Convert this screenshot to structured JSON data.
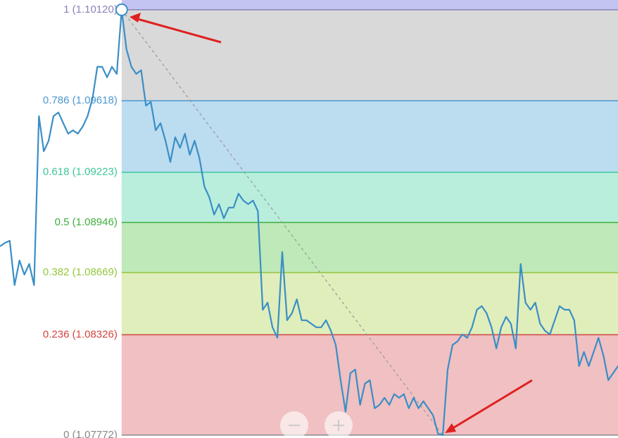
{
  "chart_data": {
    "type": "line",
    "series": [
      {
        "color": "#3a8ec6",
        "values": [
          1.08814,
          1.08833,
          1.08845,
          1.086,
          1.08736,
          1.08658,
          1.08717,
          1.086,
          1.09533,
          1.09339,
          1.09397,
          1.09533,
          1.09553,
          1.09494,
          1.09436,
          1.09455,
          1.09436,
          1.09475,
          1.09533,
          1.0963,
          1.09805,
          1.09805,
          1.09747,
          1.09805,
          1.09766,
          1.1012,
          1.09902,
          1.09805,
          1.09766,
          1.09786,
          1.09591,
          1.09611,
          1.09455,
          1.09494,
          1.09397,
          1.0928,
          1.09416,
          1.09358,
          1.09436,
          1.09319,
          1.09397,
          1.093,
          1.09144,
          1.09086,
          1.08989,
          1.09047,
          1.08969,
          1.09028,
          1.09028,
          1.09105,
          1.09067,
          1.09047,
          1.09067,
          1.09008,
          1.08464,
          1.08503,
          1.08367,
          1.08309,
          1.08783,
          1.08406,
          1.08445,
          1.08522,
          1.08406,
          1.08406,
          1.08386,
          1.08367,
          1.08367,
          1.08406,
          1.08348,
          1.0827,
          1.08075,
          1.07901,
          1.08114,
          1.08134,
          1.07939,
          1.08056,
          1.08075,
          1.0792,
          1.07939,
          1.07978,
          1.07939,
          1.07998,
          1.07978,
          1.07998,
          1.0792,
          1.07978,
          1.0792,
          1.07959,
          1.0792,
          1.07881,
          1.0778,
          1.07772,
          1.08134,
          1.0827,
          1.08289,
          1.08328,
          1.08309,
          1.08367,
          1.08464,
          1.08484,
          1.08445,
          1.08367,
          1.0825,
          1.08367,
          1.08425,
          1.08386,
          1.0825,
          1.08717,
          1.08503,
          1.08464,
          1.08503,
          1.08386,
          1.08348,
          1.08328,
          1.08406,
          1.08484,
          1.08464,
          1.08464,
          1.08406,
          1.08153,
          1.08231,
          1.08153,
          1.08231,
          1.08309,
          1.08211,
          1.08075,
          1.08114,
          1.08153
        ]
      }
    ],
    "ylim": [
      1.07756,
      1.10174
    ],
    "levels": [
      {
        "value": 1.1012,
        "label": "1 (1.10120)",
        "color": "#8a84b8",
        "fill": "#d9d9d9"
      },
      {
        "value": 1.09618,
        "label": "0.786 (1.09618)",
        "color": "#4a98cf",
        "fill": "#bcdcf0"
      },
      {
        "value": 1.09223,
        "label": "0.618 (1.09223)",
        "color": "#3cc59a",
        "fill": "#b9eedc"
      },
      {
        "value": 1.08946,
        "label": "0.5 (1.08946)",
        "color": "#3faf3f",
        "fill": "#bfe9b8"
      },
      {
        "value": 1.08669,
        "label": "0.382 (1.08669)",
        "color": "#95c63c",
        "fill": "#dfeebb"
      },
      {
        "value": 1.08326,
        "label": "0.236 (1.08326)",
        "color": "#d2453f",
        "fill": "#f0c0c2"
      },
      {
        "value": 1.07772,
        "label": "0 (1.07772)",
        "color": "#888888"
      }
    ]
  }
}
